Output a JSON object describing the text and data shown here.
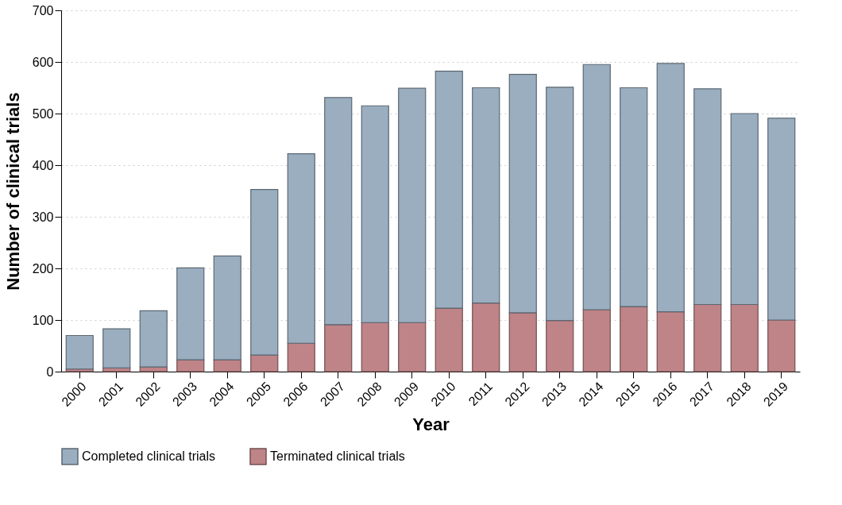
{
  "chart_data": {
    "type": "bar",
    "stacked": true,
    "xlabel": "Year",
    "ylabel": "Number of clinical trials",
    "categories": [
      "2000",
      "2001",
      "2002",
      "2003",
      "2004",
      "2005",
      "2006",
      "2007",
      "2008",
      "2009",
      "2010",
      "2011",
      "2012",
      "2013",
      "2014",
      "2015",
      "2016",
      "2017",
      "2018",
      "2019"
    ],
    "series": [
      {
        "name": "Terminated clinical trials",
        "color": "#bf8487",
        "values": [
          5,
          7,
          9,
          23,
          23,
          32,
          55,
          91,
          95,
          95,
          123,
          133,
          114,
          99,
          120,
          126,
          116,
          130,
          130,
          100
        ]
      },
      {
        "name": "Completed clinical trials",
        "color": "#9aaec0",
        "values": [
          65,
          76,
          109,
          178,
          201,
          321,
          367,
          440,
          420,
          454,
          459,
          417,
          462,
          452,
          475,
          424,
          481,
          418,
          370,
          391
        ]
      }
    ],
    "ylim": [
      0,
      700
    ],
    "yticks": [
      0,
      100,
      200,
      300,
      400,
      500,
      600,
      700
    ],
    "grid": "y",
    "legend": "bottom"
  }
}
